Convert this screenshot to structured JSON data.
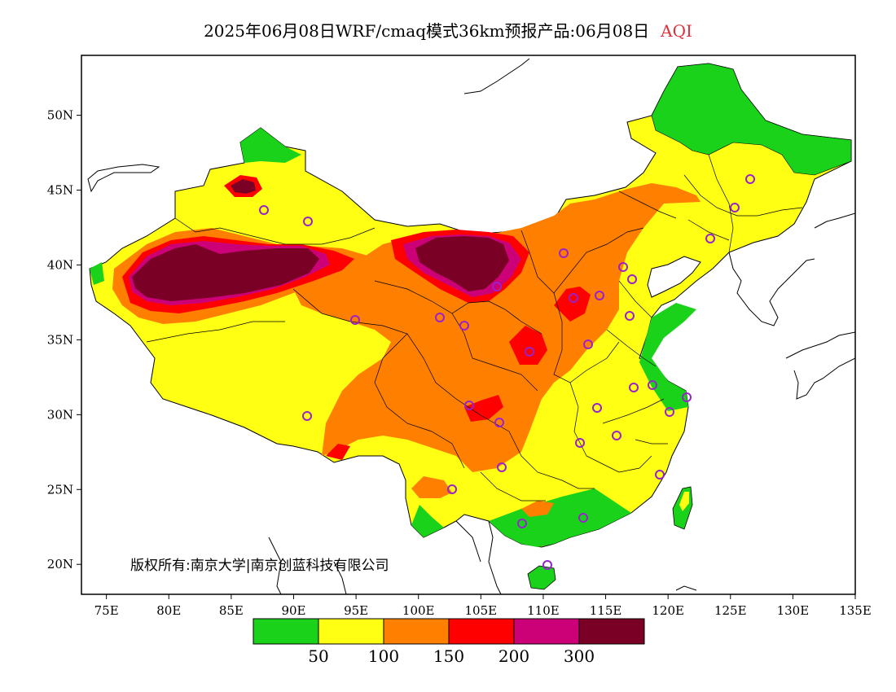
{
  "title": {
    "main": "2025年06月08日WRF/cmaq模式36km预报产品:06月08日",
    "variable": "AQI",
    "variable_color": "#e0303a"
  },
  "copyright": "版权所有:南京大学|南京创蓝科技有限公司",
  "map": {
    "lon_range": [
      73,
      135
    ],
    "lat_range": [
      18,
      54
    ],
    "x_ticks": [
      "75E",
      "80E",
      "85E",
      "90E",
      "95E",
      "100E",
      "105E",
      "110E",
      "115E",
      "120E",
      "125E",
      "130E",
      "135E"
    ],
    "x_tick_values": [
      75,
      80,
      85,
      90,
      95,
      100,
      105,
      110,
      115,
      120,
      125,
      130,
      135
    ],
    "y_ticks": [
      "20N",
      "25N",
      "30N",
      "35N",
      "40N",
      "45N",
      "50N"
    ],
    "y_tick_values": [
      20,
      25,
      30,
      35,
      40,
      45,
      50
    ]
  },
  "legend": {
    "colors": [
      "#19d219",
      "#ffff14",
      "#ff7f00",
      "#ff0000",
      "#cc0077",
      "#7a0026"
    ],
    "labels": [
      "50",
      "100",
      "150",
      "200",
      "300"
    ]
  }
}
